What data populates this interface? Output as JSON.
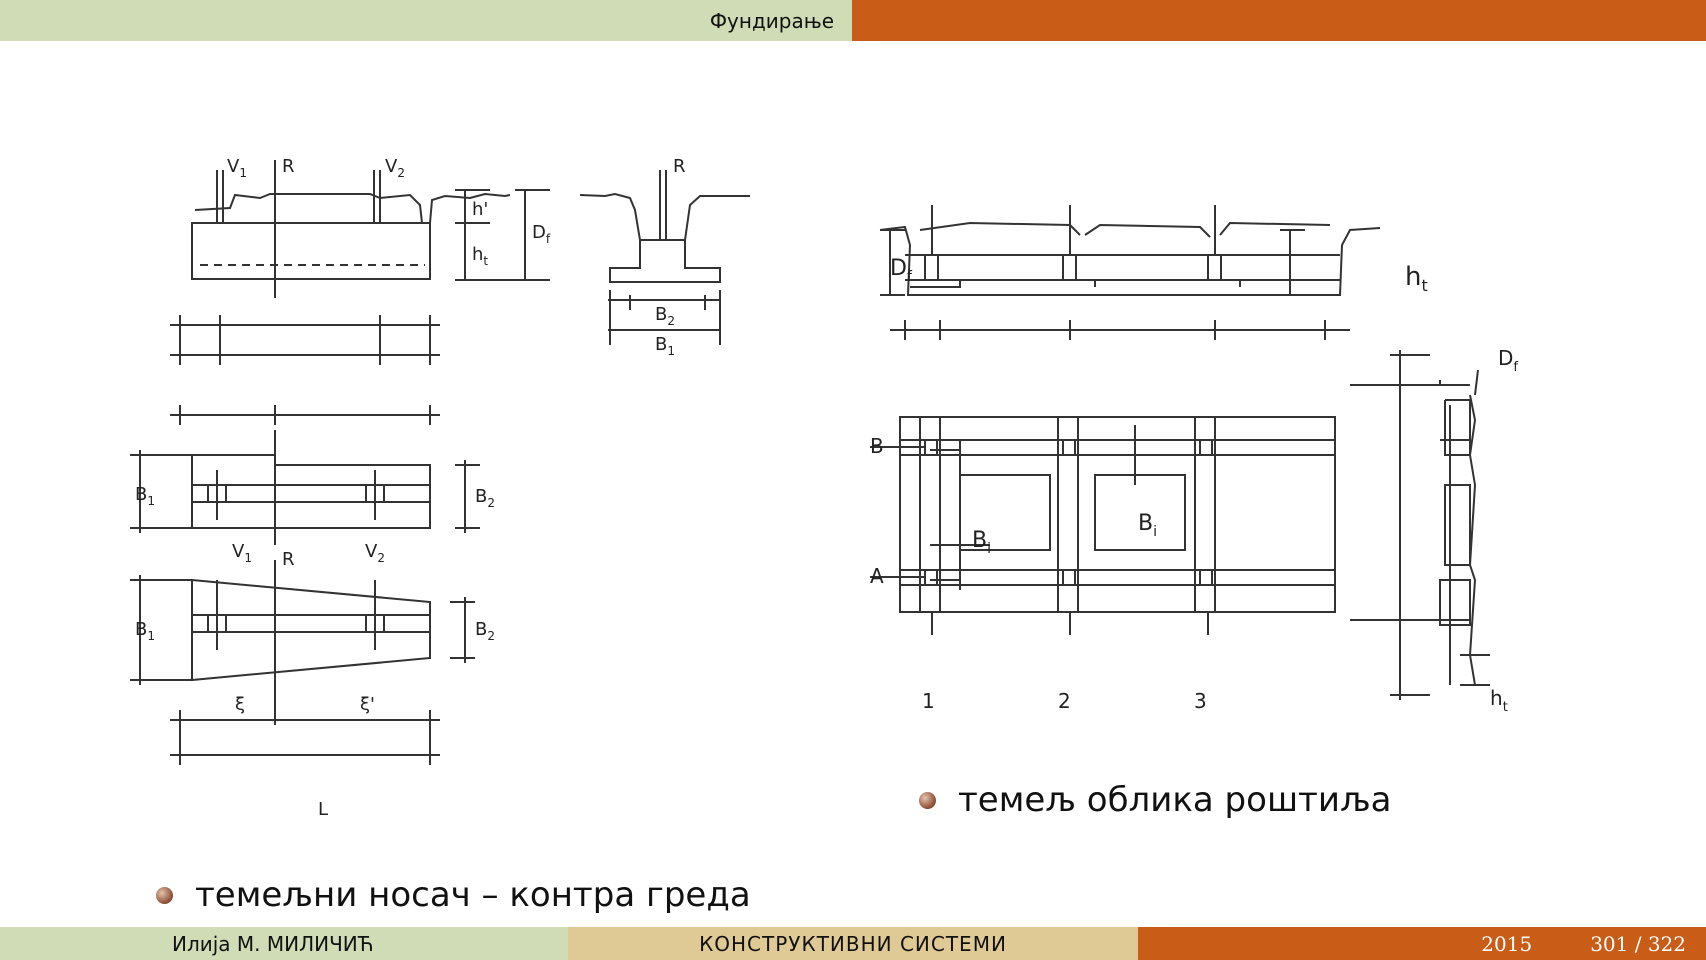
{
  "header": {
    "title": "Фундирање",
    "accent_color": "#c95d17",
    "light_color": "#cfdcb6"
  },
  "figure_left": {
    "labels": {
      "v1": "V",
      "v1_sub": "1",
      "r": "R",
      "v2": "V",
      "v2_sub": "2",
      "h_prime": "h'",
      "ht": "h",
      "ht_sub": "t",
      "df": "D",
      "df_sub": "f",
      "b1": "B",
      "b1_sub": "1",
      "b2": "B",
      "b2_sub": "2",
      "xi": "ξ",
      "xi_prime": "ξ'",
      "l": "L"
    }
  },
  "figure_right": {
    "labels": {
      "df": "D",
      "df_sub": "f",
      "ht": "h",
      "ht_sub": "t",
      "b": "B",
      "a": "A",
      "bi": "B",
      "bi_sub": "i",
      "n1": "1",
      "n2": "2",
      "n3": "3"
    }
  },
  "bullets": [
    {
      "text": "темељни носач – контра греда"
    },
    {
      "text": "темељ облика роштиља"
    }
  ],
  "footer": {
    "author": "Илија М. МИЛИЧИЋ",
    "course": "КОНСТРУКТИВНИ СИСТЕМИ",
    "year": "2015",
    "page": "301 / 322"
  }
}
